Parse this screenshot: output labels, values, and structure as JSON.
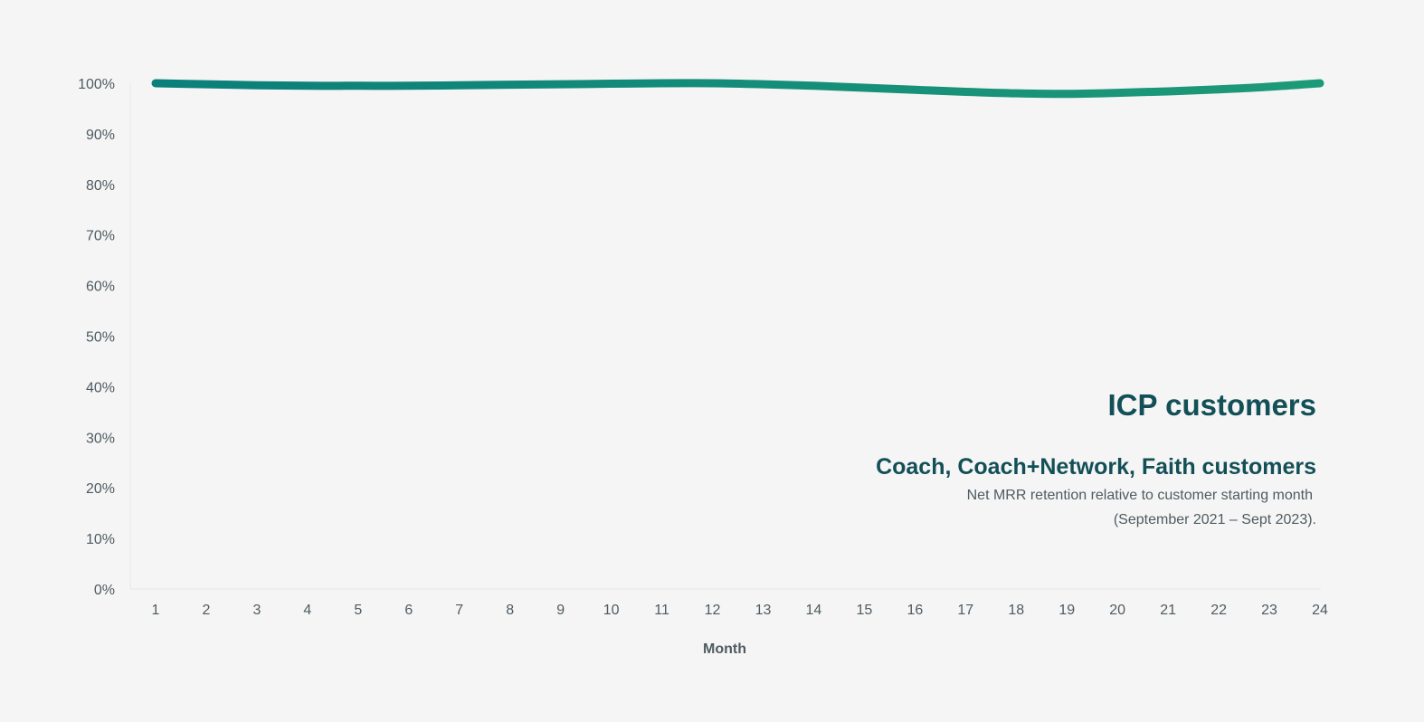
{
  "chart_data": {
    "type": "line",
    "title": "ICP customers",
    "subtitle": "Coach, Coach+Network, Faith customers",
    "description_lines": [
      "Net MRR retention relative to customer starting month",
      "(September 2021 – Sept 2023)."
    ],
    "xlabel": "Month",
    "ylabel": "",
    "x": [
      1,
      2,
      3,
      4,
      5,
      6,
      7,
      8,
      9,
      10,
      11,
      12,
      13,
      14,
      15,
      16,
      17,
      18,
      19,
      20,
      21,
      22,
      23,
      24
    ],
    "ylim": [
      0,
      100
    ],
    "yticks": [
      0,
      10,
      20,
      30,
      40,
      50,
      60,
      70,
      80,
      90,
      100
    ],
    "ytick_labels": [
      "0%",
      "10%",
      "20%",
      "30%",
      "40%",
      "50%",
      "60%",
      "70%",
      "80%",
      "90%",
      "100%"
    ],
    "series": [
      {
        "values": [
          100,
          99.8,
          99.6,
          99.5,
          99.5,
          99.5,
          99.6,
          99.7,
          99.8,
          99.9,
          100,
          100,
          99.8,
          99.5,
          99.1,
          98.7,
          98.3,
          98.0,
          97.9,
          98.1,
          98.4,
          98.8,
          99.3,
          100
        ],
        "color": "#16917f"
      }
    ],
    "grid": false,
    "legend": "none",
    "colors": {
      "line_start": "#0b7f7a",
      "line_end": "#1d9a78",
      "axis": "#e6e6e6",
      "text": "#4f5b61",
      "title": "#134f57"
    }
  }
}
